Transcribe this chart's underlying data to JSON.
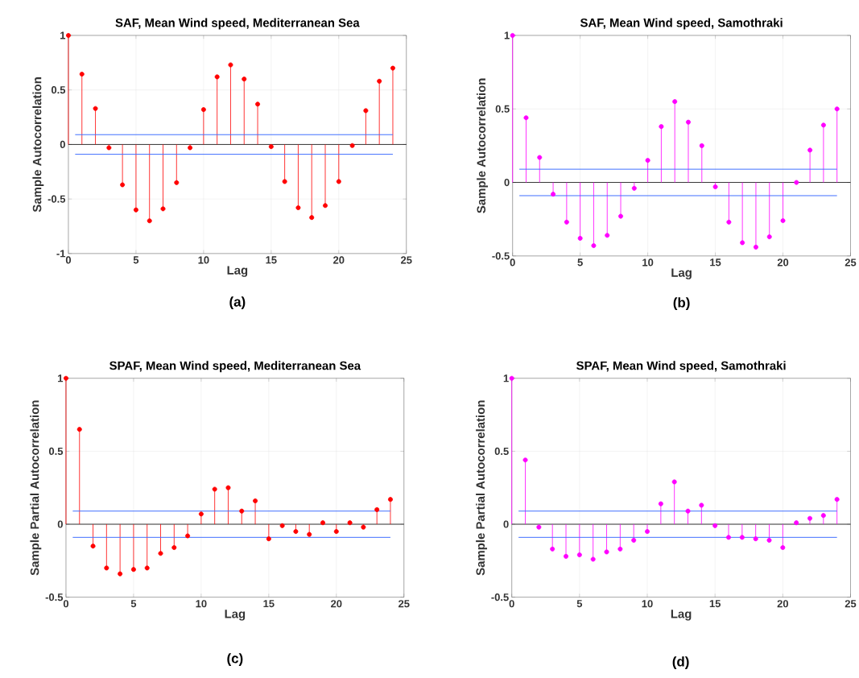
{
  "chart_data": [
    {
      "type": "lollipop",
      "title": "SAF, Mean Wind speed, Mediterranean Sea",
      "xlabel": "Lag",
      "ylabel": "Sample Autocorrelation",
      "annotations": [
        "(a)"
      ],
      "x": [
        0,
        1,
        2,
        3,
        4,
        5,
        6,
        7,
        8,
        9,
        10,
        11,
        12,
        13,
        14,
        15,
        16,
        17,
        18,
        19,
        20,
        21,
        22,
        23,
        24
      ],
      "series": [
        {
          "color": "#ff0000",
          "values": [
            1,
            0.645,
            0.33,
            -0.03,
            -0.37,
            -0.6,
            -0.7,
            -0.59,
            -0.35,
            -0.03,
            0.32,
            0.62,
            0.73,
            0.6,
            0.37,
            -0.02,
            -0.34,
            -0.58,
            -0.67,
            -0.56,
            -0.34,
            -0.01,
            0.31,
            0.58,
            0.7
          ]
        }
      ],
      "xlim": [
        0,
        25
      ],
      "ylim": [
        -1,
        1
      ],
      "xticks": [
        0,
        5,
        10,
        15,
        20,
        25
      ],
      "yticks": [
        -1,
        -0.5,
        0,
        0.5,
        1
      ],
      "grid": true,
      "marker": "circle",
      "ref_lines": [
        {
          "axis": "y",
          "value": 0.09,
          "color": "#3f6fff"
        },
        {
          "axis": "y",
          "value": -0.09,
          "color": "#3f6fff"
        }
      ]
    },
    {
      "type": "lollipop",
      "title": "SAF, Mean Wind speed, Samothraki",
      "xlabel": "Lag",
      "ylabel": "Sample Autocorrelation",
      "annotations": [
        "(b)"
      ],
      "x": [
        0,
        1,
        2,
        3,
        4,
        5,
        6,
        7,
        8,
        9,
        10,
        11,
        12,
        13,
        14,
        15,
        16,
        17,
        18,
        19,
        20,
        21,
        22,
        23,
        24
      ],
      "series": [
        {
          "color": "#ff00ff",
          "values": [
            1,
            0.44,
            0.17,
            -0.08,
            -0.27,
            -0.38,
            -0.43,
            -0.36,
            -0.23,
            -0.04,
            0.15,
            0.38,
            0.55,
            0.41,
            0.25,
            -0.03,
            -0.27,
            -0.41,
            -0.44,
            -0.37,
            -0.26,
            0.0,
            0.22,
            0.39,
            0.5
          ]
        }
      ],
      "xlim": [
        0,
        25
      ],
      "ylim": [
        -0.5,
        1
      ],
      "xticks": [
        0,
        5,
        10,
        15,
        20,
        25
      ],
      "yticks": [
        -0.5,
        0,
        0.5,
        1
      ],
      "grid": true,
      "marker": "circle",
      "ref_lines": [
        {
          "axis": "y",
          "value": 0.09,
          "color": "#3f6fff"
        },
        {
          "axis": "y",
          "value": -0.09,
          "color": "#3f6fff"
        }
      ]
    },
    {
      "type": "lollipop",
      "title": "SPAF, Mean Wind speed, Mediterranean Sea",
      "xlabel": "Lag",
      "ylabel": "Sample Partial Autocorrelation",
      "annotations": [
        "(c)"
      ],
      "x": [
        0,
        1,
        2,
        3,
        4,
        5,
        6,
        7,
        8,
        9,
        10,
        11,
        12,
        13,
        14,
        15,
        16,
        17,
        18,
        19,
        20,
        21,
        22,
        23,
        24
      ],
      "series": [
        {
          "color": "#ff0000",
          "values": [
            1,
            0.65,
            -0.15,
            -0.3,
            -0.34,
            -0.31,
            -0.3,
            -0.2,
            -0.16,
            -0.08,
            0.07,
            0.24,
            0.25,
            0.09,
            0.16,
            -0.1,
            -0.01,
            -0.05,
            -0.07,
            0.01,
            -0.05,
            0.01,
            -0.02,
            0.1,
            0.17
          ]
        }
      ],
      "xlim": [
        0,
        25
      ],
      "ylim": [
        -0.5,
        1
      ],
      "xticks": [
        0,
        5,
        10,
        15,
        20,
        25
      ],
      "yticks": [
        -0.5,
        0,
        0.5,
        1
      ],
      "grid": true,
      "marker": "circle",
      "ref_lines": [
        {
          "axis": "y",
          "value": 0.09,
          "color": "#3f6fff"
        },
        {
          "axis": "y",
          "value": -0.09,
          "color": "#3f6fff"
        }
      ]
    },
    {
      "type": "lollipop",
      "title": "SPAF, Mean Wind speed, Samothraki",
      "xlabel": "Lag",
      "ylabel": "Sample Partial Autocorrelation",
      "annotations": [
        "(d)"
      ],
      "x": [
        0,
        1,
        2,
        3,
        4,
        5,
        6,
        7,
        8,
        9,
        10,
        11,
        12,
        13,
        14,
        15,
        16,
        17,
        18,
        19,
        20,
        21,
        22,
        23,
        24
      ],
      "series": [
        {
          "color": "#ff00ff",
          "values": [
            1,
            0.44,
            -0.02,
            -0.17,
            -0.22,
            -0.21,
            -0.24,
            -0.19,
            -0.17,
            -0.11,
            -0.05,
            0.14,
            0.29,
            0.09,
            0.13,
            -0.01,
            -0.09,
            -0.09,
            -0.1,
            -0.11,
            -0.16,
            0.01,
            0.04,
            0.06,
            0.17
          ]
        }
      ],
      "xlim": [
        0,
        25
      ],
      "ylim": [
        -0.5,
        1
      ],
      "xticks": [
        0,
        5,
        10,
        15,
        20,
        25
      ],
      "yticks": [
        -0.5,
        0,
        0.5,
        1
      ],
      "grid": true,
      "marker": "circle",
      "ref_lines": [
        {
          "axis": "y",
          "value": 0.09,
          "color": "#3f6fff"
        },
        {
          "axis": "y",
          "value": -0.09,
          "color": "#3f6fff"
        }
      ]
    }
  ]
}
